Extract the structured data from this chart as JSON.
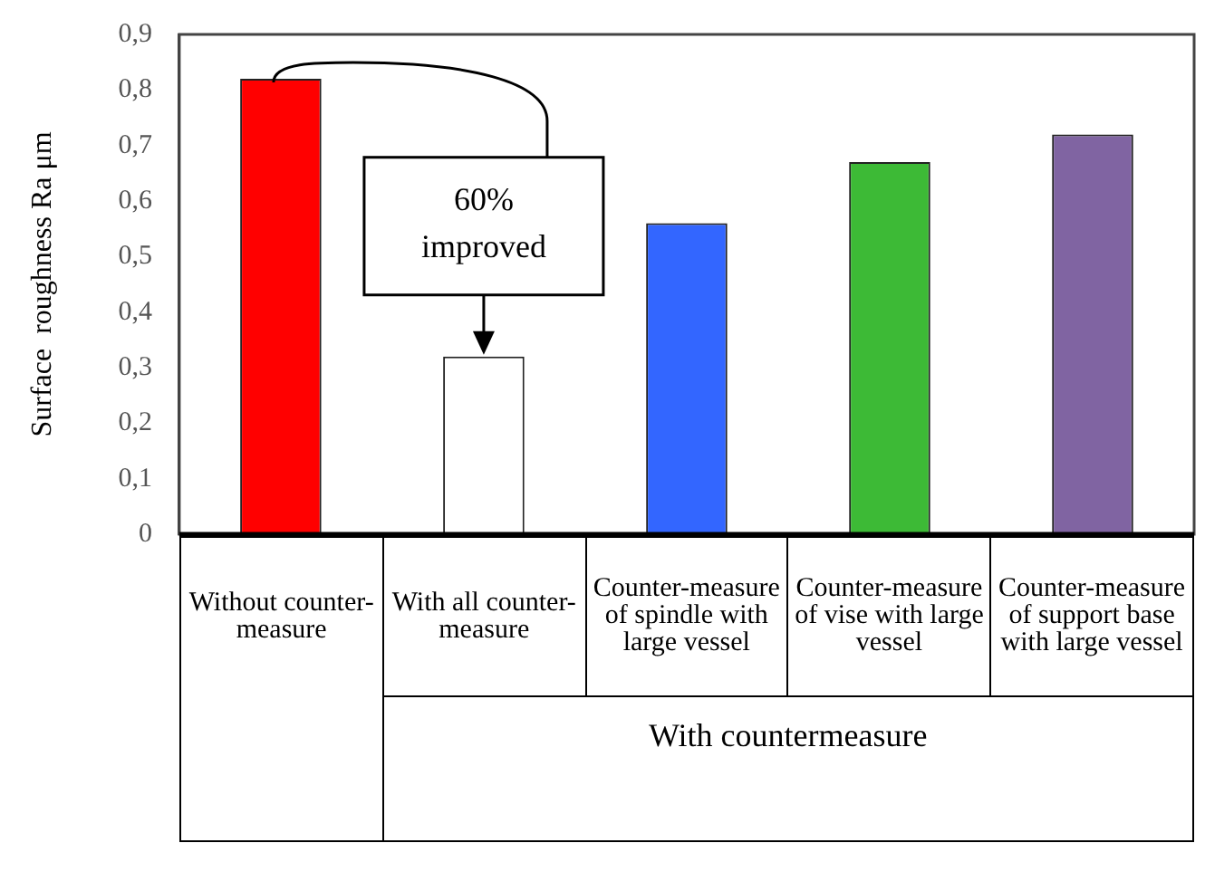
{
  "chart_data": {
    "type": "bar",
    "ylabel": "Surface  roughness Ra μm",
    "categories": [
      "Without counter-measure",
      "With all counter-measure",
      "Counter-measure of spindle with large vessel",
      "Counter-measure of vise with large vessel",
      "Counter-measure of support base with large vessel"
    ],
    "values": [
      0.82,
      0.32,
      0.56,
      0.67,
      0.72
    ],
    "colors": [
      "#ff0000",
      "#ffffff",
      "#3366ff",
      "#3dba36",
      "#8064a2"
    ],
    "ylim": [
      0,
      0.9
    ],
    "yticks": [
      0,
      {
        "value": 0.1,
        "label": "0,1"
      },
      {
        "value": 0.2,
        "label": "0,2"
      },
      {
        "value": 0.3,
        "label": "0,3"
      },
      {
        "value": 0.4,
        "label": "0,4"
      },
      {
        "value": 0.5,
        "label": "0,5"
      },
      {
        "value": 0.6,
        "label": "0,6"
      },
      {
        "value": 0.7,
        "label": "0,7"
      },
      {
        "value": 0.8,
        "label": "0,8"
      },
      {
        "value": 0.9,
        "label": "0,9"
      }
    ],
    "grid": false,
    "legend": false,
    "annotations": [
      {
        "text": "60% improved",
        "x": "With all counter-measure",
        "y": 0.32
      },
      "With countermeasure"
    ]
  }
}
